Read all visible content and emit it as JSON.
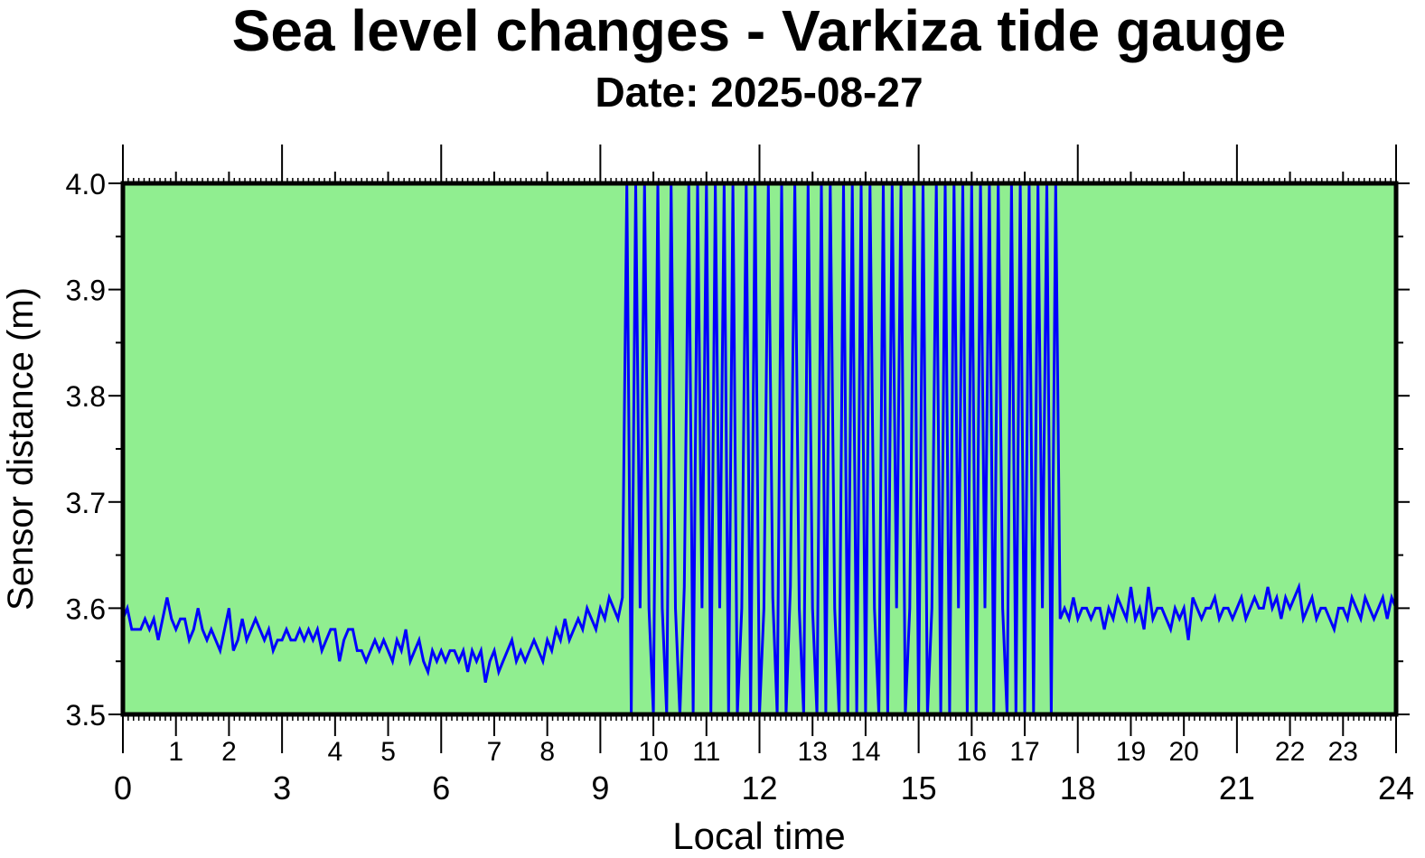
{
  "chart_data": {
    "type": "line",
    "title": "Sea level changes - Varkiza tide gauge",
    "subtitle": "Date: 2025-08-27",
    "xlabel": "Local time",
    "ylabel": "Sensor distance (m)",
    "xlim": [
      0,
      24
    ],
    "ylim": [
      3.5,
      4.0
    ],
    "x_major_ticks": [
      0,
      3,
      6,
      9,
      12,
      15,
      18,
      21,
      24
    ],
    "x_minor_labeled_ticks": [
      1,
      2,
      4,
      5,
      7,
      8,
      10,
      11,
      13,
      14,
      16,
      17,
      19,
      20,
      22,
      23
    ],
    "y_ticks": [
      "3.5",
      "3.6",
      "3.7",
      "3.8",
      "3.9",
      "4.0"
    ],
    "background_color": "#90ee90",
    "line_color": "#0000ff",
    "grid": false,
    "series": [
      {
        "name": "Sensor distance",
        "x_start_hour": 0,
        "interval_minutes": 5,
        "values": [
          3.59,
          3.6,
          3.58,
          3.58,
          3.58,
          3.59,
          3.58,
          3.59,
          3.57,
          3.59,
          3.61,
          3.59,
          3.58,
          3.59,
          3.59,
          3.57,
          3.58,
          3.6,
          3.58,
          3.57,
          3.58,
          3.57,
          3.56,
          3.58,
          3.6,
          3.56,
          3.57,
          3.59,
          3.57,
          3.58,
          3.59,
          3.58,
          3.57,
          3.58,
          3.56,
          3.57,
          3.57,
          3.58,
          3.57,
          3.57,
          3.58,
          3.57,
          3.58,
          3.57,
          3.58,
          3.56,
          3.57,
          3.58,
          3.58,
          3.55,
          3.57,
          3.58,
          3.58,
          3.56,
          3.56,
          3.55,
          3.56,
          3.57,
          3.56,
          3.57,
          3.56,
          3.55,
          3.57,
          3.56,
          3.58,
          3.55,
          3.56,
          3.57,
          3.55,
          3.54,
          3.56,
          3.55,
          3.56,
          3.55,
          3.56,
          3.56,
          3.55,
          3.56,
          3.54,
          3.56,
          3.55,
          3.56,
          3.53,
          3.55,
          3.56,
          3.54,
          3.55,
          3.56,
          3.57,
          3.55,
          3.56,
          3.55,
          3.56,
          3.57,
          3.56,
          3.55,
          3.57,
          3.56,
          3.58,
          3.57,
          3.59,
          3.57,
          3.58,
          3.59,
          3.58,
          3.6,
          3.59,
          3.58,
          3.6,
          3.59,
          3.61,
          3.6,
          3.59,
          3.61,
          4.0,
          3.5,
          4.0,
          3.6,
          4.0,
          3.6,
          3.5,
          4.0,
          3.6,
          3.5,
          4.0,
          3.6,
          3.5,
          3.62,
          4.0,
          3.5,
          4.0,
          3.6,
          4.0,
          3.5,
          4.0,
          3.6,
          4.0,
          3.5,
          4.0,
          3.5,
          3.6,
          4.0,
          3.5,
          4.0,
          3.5,
          3.6,
          4.0,
          3.61,
          3.5,
          4.0,
          3.5,
          3.62,
          4.0,
          3.6,
          3.5,
          4.0,
          3.6,
          3.5,
          4.0,
          3.5,
          4.0,
          3.6,
          3.5,
          4.0,
          3.5,
          4.0,
          3.5,
          4.0,
          3.5,
          4.0,
          3.6,
          3.5,
          4.0,
          3.5,
          4.0,
          3.6,
          4.0,
          3.5,
          3.6,
          4.0,
          3.5,
          4.0,
          3.5,
          3.6,
          4.0,
          3.5,
          4.0,
          3.5,
          4.0,
          3.6,
          4.0,
          3.5,
          4.0,
          3.5,
          4.0,
          3.6,
          4.0,
          3.5,
          4.0,
          3.6,
          3.5,
          4.0,
          3.5,
          4.0,
          3.5,
          4.0,
          3.5,
          4.0,
          3.6,
          4.0,
          3.5,
          4.0,
          3.59,
          3.6,
          3.59,
          3.61,
          3.59,
          3.6,
          3.6,
          3.59,
          3.6,
          3.6,
          3.58,
          3.6,
          3.59,
          3.61,
          3.6,
          3.59,
          3.62,
          3.59,
          3.6,
          3.58,
          3.62,
          3.59,
          3.6,
          3.6,
          3.59,
          3.58,
          3.6,
          3.59,
          3.6,
          3.57,
          3.61,
          3.6,
          3.59,
          3.6,
          3.6,
          3.61,
          3.59,
          3.6,
          3.6,
          3.59,
          3.6,
          3.61,
          3.59,
          3.6,
          3.61,
          3.6,
          3.6,
          3.62,
          3.6,
          3.61,
          3.59,
          3.61,
          3.6,
          3.61,
          3.62,
          3.59,
          3.6,
          3.61,
          3.59,
          3.6,
          3.6,
          3.59,
          3.58,
          3.6,
          3.6,
          3.59,
          3.61,
          3.6,
          3.59,
          3.61,
          3.6,
          3.59,
          3.6,
          3.61,
          3.59,
          3.61,
          3.6
        ]
      }
    ]
  }
}
